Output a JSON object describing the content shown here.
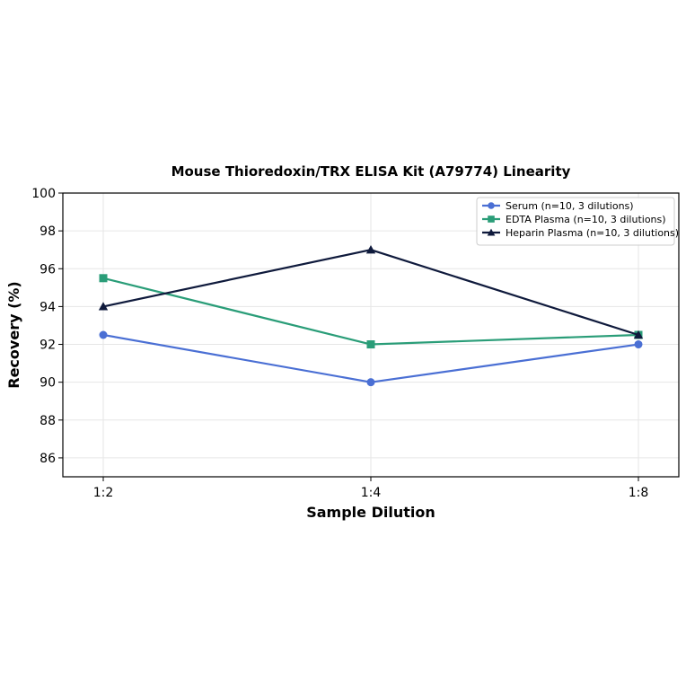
{
  "chart_data": {
    "type": "line",
    "title": "Mouse Thioredoxin/TRX ELISA Kit (A79774) Linearity",
    "xlabel": "Sample Dilution",
    "ylabel": "Recovery (%)",
    "categories": [
      "1:2",
      "1:4",
      "1:8"
    ],
    "ylim": [
      85,
      100
    ],
    "yticks": [
      86,
      88,
      90,
      92,
      94,
      96,
      98,
      100
    ],
    "grid": true,
    "legend_position": "top-right",
    "series": [
      {
        "name": "Serum (n=10, 3 dilutions)",
        "values": [
          92.5,
          90.0,
          92.0
        ],
        "color": "#4a6fd4",
        "marker": "circle"
      },
      {
        "name": "EDTA Plasma (n=10, 3 dilutions)",
        "values": [
          95.5,
          92.0,
          92.5
        ],
        "color": "#2a9d78",
        "marker": "square"
      },
      {
        "name": "Heparin Plasma (n=10, 3 dilutions)",
        "values": [
          94.0,
          97.0,
          92.5
        ],
        "color": "#0f1a3c",
        "marker": "triangle"
      }
    ]
  }
}
